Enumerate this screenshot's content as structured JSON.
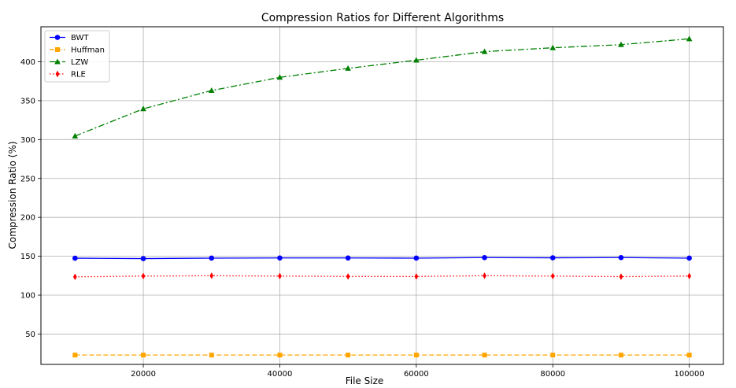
{
  "chart_data": {
    "type": "line",
    "title": "Compression Ratios for Different Algorithms",
    "xlabel": "File Size",
    "ylabel": "Compression Ratio (%)",
    "x": [
      10000,
      20000,
      30000,
      40000,
      50000,
      60000,
      70000,
      80000,
      90000,
      100000
    ],
    "xlim": [
      5000,
      105000
    ],
    "ylim": [
      11,
      445
    ],
    "xticks": [
      20000,
      40000,
      60000,
      80000,
      100000
    ],
    "yticks": [
      50,
      100,
      150,
      200,
      250,
      300,
      350,
      400
    ],
    "grid": true,
    "legend_position": "top-left",
    "series": [
      {
        "name": "BWT",
        "color": "#0000ff",
        "marker": "circle",
        "linestyle": "solid",
        "values": [
          147.5,
          147.0,
          147.6,
          147.8,
          147.8,
          147.6,
          148.3,
          148.0,
          148.3,
          147.6
        ]
      },
      {
        "name": "Huffman",
        "color": "#ffa500",
        "marker": "square",
        "linestyle": "dashed",
        "values": [
          23,
          23,
          23,
          23,
          23,
          23,
          23,
          23,
          23,
          23
        ]
      },
      {
        "name": "LZW",
        "color": "#008000",
        "marker": "triangle",
        "linestyle": "dashdot",
        "values": [
          304.5,
          339.5,
          363.0,
          380.0,
          391.5,
          402.0,
          413.0,
          418.0,
          422.0,
          429.5
        ]
      },
      {
        "name": "RLE",
        "color": "#ff0000",
        "marker": "diamond",
        "linestyle": "dotted",
        "values": [
          123.5,
          124.5,
          125.0,
          124.5,
          124.0,
          124.0,
          125.0,
          124.5,
          123.8,
          124.5
        ]
      }
    ]
  }
}
